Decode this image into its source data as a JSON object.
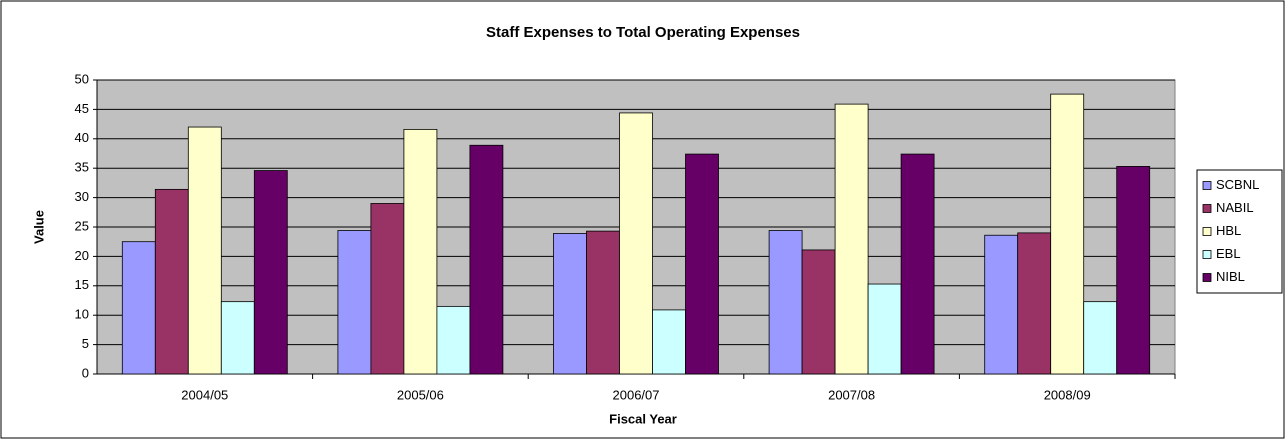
{
  "chart_data": {
    "type": "bar",
    "title": "Staff Expenses to Total Operating Expenses",
    "x_label": "Fiscal Year",
    "y_label": "Value",
    "categories": [
      "2004/05",
      "2005/06",
      "2006/07",
      "2007/08",
      "2008/09"
    ],
    "series": [
      {
        "name": "SCBNL",
        "color": "#9999ff",
        "values": [
          22.5,
          24.4,
          23.9,
          24.4,
          23.6
        ]
      },
      {
        "name": "NABIL",
        "color": "#993366",
        "values": [
          31.4,
          29,
          24.3,
          21.1,
          24.0
        ]
      },
      {
        "name": "HBL",
        "color": "#ffffcc",
        "values": [
          42,
          41.6,
          44.4,
          45.9,
          47.6
        ]
      },
      {
        "name": "EBL",
        "color": "#ccffff",
        "values": [
          12.3,
          11.5,
          10.9,
          15.3,
          12.3
        ]
      },
      {
        "name": "NIBL",
        "color": "#660066",
        "values": [
          34.6,
          38.9,
          37.4,
          37.4,
          35.3
        ]
      }
    ],
    "ylim": [
      0,
      50
    ],
    "yticks": [
      0,
      5,
      10,
      15,
      20,
      25,
      30,
      35,
      40,
      45,
      50
    ],
    "grid": true,
    "legend": "right"
  }
}
